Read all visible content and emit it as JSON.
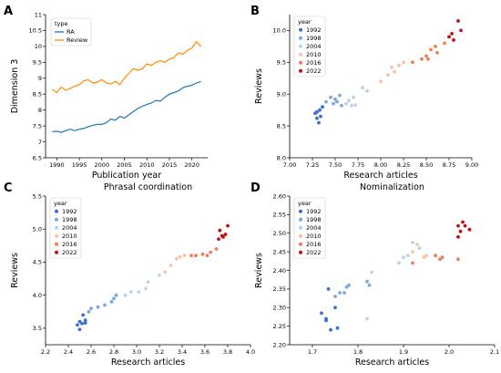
{
  "panels": [
    {
      "letter": "A"
    },
    {
      "letter": "B"
    },
    {
      "letter": "C"
    },
    {
      "letter": "D"
    }
  ],
  "colors": {
    "RA": "#1f77b4",
    "Review": "#ff8c00",
    "year_scale": [
      "#3b6fd0",
      "#7aa8e0",
      "#b9d3ee",
      "#f6c3a8",
      "#ef7f58",
      "#c0100f"
    ]
  },
  "chart_data": [
    {
      "type": "line",
      "title": "",
      "xlabel": "Publication year",
      "ylabel": "Dimension 3",
      "xlim": [
        1987.5,
        2023.5
      ],
      "ylim": [
        6.5,
        11.0
      ],
      "xticks": [
        1990,
        1995,
        2000,
        2005,
        2010,
        2015,
        2020
      ],
      "yticks": [
        6.5,
        7.0,
        7.5,
        8.0,
        8.5,
        9.0,
        9.5,
        10.0,
        10.5,
        11.0
      ],
      "legend_title": "type",
      "legend_position": "top-left",
      "x": [
        1989,
        1990,
        1991,
        1992,
        1993,
        1994,
        1995,
        1996,
        1997,
        1998,
        1999,
        2000,
        2001,
        2002,
        2003,
        2004,
        2005,
        2006,
        2007,
        2008,
        2009,
        2010,
        2011,
        2012,
        2013,
        2014,
        2015,
        2016,
        2017,
        2018,
        2019,
        2020,
        2021,
        2022
      ],
      "series": [
        {
          "name": "RA",
          "color": "#1f77b4",
          "values": [
            7.32,
            7.33,
            7.3,
            7.35,
            7.4,
            7.35,
            7.4,
            7.42,
            7.48,
            7.52,
            7.55,
            7.55,
            7.6,
            7.72,
            7.68,
            7.8,
            7.75,
            7.85,
            7.95,
            8.05,
            8.12,
            8.18,
            8.22,
            8.3,
            8.28,
            8.4,
            8.5,
            8.55,
            8.6,
            8.7,
            8.75,
            8.78,
            8.85,
            8.9
          ]
        },
        {
          "name": "Review",
          "color": "#ff8c00",
          "values": [
            8.65,
            8.55,
            8.72,
            8.62,
            8.68,
            8.75,
            8.8,
            8.92,
            8.95,
            8.85,
            8.88,
            8.95,
            8.85,
            8.82,
            8.9,
            8.8,
            9.0,
            9.15,
            9.3,
            9.25,
            9.3,
            9.45,
            9.4,
            9.5,
            9.55,
            9.5,
            9.6,
            9.65,
            9.8,
            9.75,
            9.88,
            9.95,
            10.15,
            10.0
          ]
        }
      ]
    },
    {
      "type": "scatter",
      "title": "",
      "xlabel": "Research articles",
      "ylabel": "Reviews",
      "xlim": [
        7.0,
        9.0
      ],
      "ylim": [
        8.0,
        10.25
      ],
      "xticks": [
        "7.00",
        "7.25",
        "7.50",
        "7.75",
        "8.00",
        "8.25",
        "8.50",
        "8.75",
        "9.00"
      ],
      "yticks": [
        "8.0",
        "8.5",
        "9.0",
        "9.5",
        "10.0"
      ],
      "legend_title": "year",
      "legend_position": "top-left",
      "legend": [
        "1992",
        "1998",
        "2004",
        "2010",
        "2016",
        "2022"
      ],
      "points": [
        [
          7.28,
          8.7,
          0
        ],
        [
          7.3,
          8.62,
          0
        ],
        [
          7.32,
          8.55,
          0
        ],
        [
          7.34,
          8.65,
          0
        ],
        [
          7.33,
          8.75,
          0
        ],
        [
          7.36,
          8.8,
          0
        ],
        [
          7.3,
          8.72,
          0
        ],
        [
          7.45,
          8.95,
          1
        ],
        [
          7.5,
          8.92,
          1
        ],
        [
          7.52,
          8.88,
          1
        ],
        [
          7.48,
          8.85,
          1
        ],
        [
          7.55,
          8.98,
          1
        ],
        [
          7.57,
          8.82,
          1
        ],
        [
          7.4,
          8.88,
          1
        ],
        [
          7.62,
          8.85,
          2
        ],
        [
          7.68,
          8.82,
          2
        ],
        [
          7.72,
          8.83,
          2
        ],
        [
          7.65,
          8.9,
          2
        ],
        [
          7.85,
          9.05,
          2
        ],
        [
          7.8,
          9.1,
          2
        ],
        [
          7.7,
          8.95,
          2
        ],
        [
          8.0,
          9.2,
          3
        ],
        [
          8.08,
          9.3,
          3
        ],
        [
          8.15,
          9.35,
          3
        ],
        [
          8.2,
          9.45,
          3
        ],
        [
          8.12,
          9.42,
          3
        ],
        [
          8.25,
          9.5,
          3
        ],
        [
          8.35,
          9.5,
          4
        ],
        [
          8.45,
          9.55,
          4
        ],
        [
          8.5,
          9.6,
          4
        ],
        [
          8.55,
          9.7,
          4
        ],
        [
          8.6,
          9.75,
          4
        ],
        [
          8.7,
          9.8,
          4
        ],
        [
          8.62,
          9.65,
          4
        ],
        [
          8.52,
          9.55,
          4
        ],
        [
          8.75,
          9.9,
          5
        ],
        [
          8.8,
          9.85,
          5
        ],
        [
          8.85,
          10.15,
          5
        ],
        [
          8.88,
          10.0,
          5
        ],
        [
          8.78,
          9.95,
          5
        ]
      ]
    },
    {
      "type": "scatter",
      "title": "Phrasal coordination",
      "xlabel": "Research articles",
      "ylabel": "Reviews",
      "xlim": [
        2.2,
        4.0
      ],
      "ylim": [
        3.25,
        5.5
      ],
      "xticks": [
        "2.2",
        "2.4",
        "2.6",
        "2.8",
        "3.0",
        "3.2",
        "3.4",
        "3.6",
        "3.8",
        "4.0"
      ],
      "yticks": [
        "3.5",
        "4.0",
        "4.5",
        "5.0",
        "5.5"
      ],
      "legend_title": "year",
      "legend_position": "top-left",
      "legend": [
        "1992",
        "1998",
        "2004",
        "2010",
        "2016",
        "2022"
      ],
      "points": [
        [
          2.48,
          3.55,
          0
        ],
        [
          2.5,
          3.6,
          0
        ],
        [
          2.5,
          3.48,
          0
        ],
        [
          2.52,
          3.57,
          0
        ],
        [
          2.55,
          3.58,
          0
        ],
        [
          2.53,
          3.7,
          0
        ],
        [
          2.55,
          3.62,
          0
        ],
        [
          2.58,
          3.75,
          1
        ],
        [
          2.6,
          3.8,
          1
        ],
        [
          2.72,
          3.85,
          1
        ],
        [
          2.8,
          3.95,
          1
        ],
        [
          2.82,
          4.0,
          1
        ],
        [
          2.78,
          3.9,
          1
        ],
        [
          2.66,
          3.82,
          1
        ],
        [
          2.9,
          4.0,
          2
        ],
        [
          2.95,
          4.05,
          2
        ],
        [
          3.02,
          4.05,
          2
        ],
        [
          3.08,
          4.1,
          2
        ],
        [
          3.1,
          4.2,
          2
        ],
        [
          3.2,
          4.3,
          2
        ],
        [
          3.25,
          4.35,
          3
        ],
        [
          3.3,
          4.45,
          3
        ],
        [
          3.35,
          4.55,
          3
        ],
        [
          3.38,
          4.58,
          3
        ],
        [
          3.42,
          4.6,
          3
        ],
        [
          3.48,
          4.6,
          4
        ],
        [
          3.52,
          4.6,
          4
        ],
        [
          3.58,
          4.62,
          4
        ],
        [
          3.62,
          4.6,
          4
        ],
        [
          3.65,
          4.65,
          4
        ],
        [
          3.7,
          4.7,
          4
        ],
        [
          3.72,
          4.85,
          5
        ],
        [
          3.75,
          4.9,
          5
        ],
        [
          3.78,
          4.92,
          5
        ],
        [
          3.8,
          5.05,
          5
        ],
        [
          3.73,
          4.98,
          5
        ],
        [
          3.76,
          4.88,
          5
        ]
      ]
    },
    {
      "type": "scatter",
      "title": "Nominalization",
      "xlabel": "Research articles",
      "ylabel": "Reviews",
      "xlim": [
        1.65,
        2.1
      ],
      "ylim": [
        2.2,
        2.6
      ],
      "xticks": [
        "1.7",
        "1.8",
        "1.9",
        "2.0",
        "2.1"
      ],
      "yticks": [
        "2.20",
        "2.25",
        "2.30",
        "2.35",
        "2.40",
        "2.45",
        "2.50",
        "2.55",
        "2.60"
      ],
      "legend_title": "year",
      "legend_position": "top-left",
      "legend": [
        "1992",
        "1998",
        "2004",
        "2010",
        "2016",
        "2022"
      ],
      "points": [
        [
          1.72,
          2.285,
          0
        ],
        [
          1.73,
          2.265,
          0
        ],
        [
          1.73,
          2.27,
          0
        ],
        [
          1.74,
          2.24,
          0
        ],
        [
          1.755,
          2.245,
          0
        ],
        [
          1.735,
          2.35,
          0
        ],
        [
          1.75,
          2.3,
          0
        ],
        [
          1.75,
          2.33,
          1
        ],
        [
          1.76,
          2.34,
          1
        ],
        [
          1.77,
          2.34,
          1
        ],
        [
          1.78,
          2.36,
          1
        ],
        [
          1.775,
          2.355,
          1
        ],
        [
          1.82,
          2.37,
          1
        ],
        [
          1.825,
          2.36,
          1
        ],
        [
          1.83,
          2.395,
          2
        ],
        [
          1.82,
          2.27,
          2
        ],
        [
          1.89,
          2.42,
          2
        ],
        [
          1.9,
          2.435,
          2
        ],
        [
          1.91,
          2.44,
          2
        ],
        [
          1.935,
          2.46,
          2
        ],
        [
          1.92,
          2.475,
          2
        ],
        [
          1.92,
          2.45,
          3
        ],
        [
          1.93,
          2.47,
          3
        ],
        [
          1.945,
          2.435,
          3
        ],
        [
          1.95,
          2.44,
          3
        ],
        [
          1.97,
          2.44,
          4
        ],
        [
          1.98,
          2.43,
          4
        ],
        [
          1.985,
          2.435,
          4
        ],
        [
          1.92,
          2.42,
          4
        ],
        [
          2.02,
          2.43,
          4
        ],
        [
          2.02,
          2.52,
          5
        ],
        [
          2.03,
          2.53,
          5
        ],
        [
          2.035,
          2.52,
          5
        ],
        [
          2.045,
          2.51,
          5
        ],
        [
          2.025,
          2.505,
          5
        ],
        [
          2.02,
          2.49,
          5
        ]
      ]
    }
  ]
}
